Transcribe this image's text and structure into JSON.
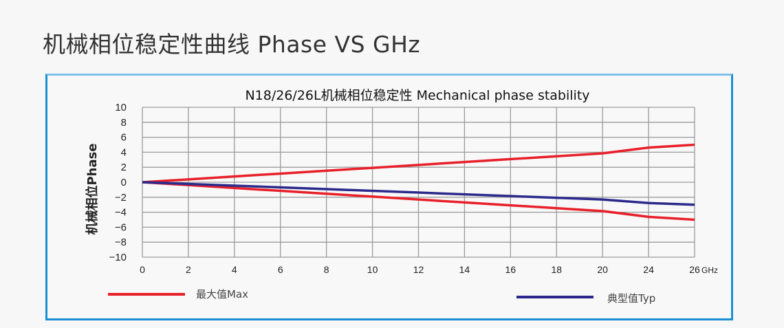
{
  "page_title": "机械相位稳定性曲线 Phase VS GHz",
  "chart_data": {
    "type": "line",
    "title": "N18/26/26L机械相位稳定性 Mechanical phase stability",
    "ylabel": "机械相位Phase",
    "xlabel": "GHz",
    "categories": [
      "0",
      "2",
      "4",
      "6",
      "8",
      "10",
      "12",
      "14",
      "16",
      "18",
      "20",
      "24",
      "26"
    ],
    "yticks": [
      "10",
      "8",
      "6",
      "4",
      "2",
      "0",
      "-2",
      "-4",
      "-6",
      "-8",
      "-10"
    ],
    "ylim": [
      -10,
      10
    ],
    "grid": true,
    "legend_placement": "bottom",
    "series": [
      {
        "name": "最大值Max",
        "color": "#e8202a",
        "values": [
          0,
          0.38,
          0.77,
          1.15,
          1.54,
          1.92,
          2.31,
          2.69,
          3.08,
          3.46,
          3.85,
          4.62,
          5
        ]
      },
      {
        "name": "最大值Max",
        "color": "#e8202a",
        "values": [
          0,
          -0.38,
          -0.77,
          -1.15,
          -1.54,
          -1.92,
          -2.31,
          -2.69,
          -3.08,
          -3.46,
          -3.85,
          -4.62,
          -5
        ]
      },
      {
        "name": "典型值Typ",
        "color": "#2b2a8c",
        "values": [
          0,
          -0.23,
          -0.46,
          -0.69,
          -0.92,
          -1.15,
          -1.38,
          -1.62,
          -1.85,
          -2.08,
          -2.31,
          -2.77,
          -3
        ]
      }
    ],
    "legend": [
      {
        "label": "最大值Max",
        "color": "#e8202a"
      },
      {
        "label": "典型值Typ",
        "color": "#2b2a8c"
      }
    ]
  }
}
